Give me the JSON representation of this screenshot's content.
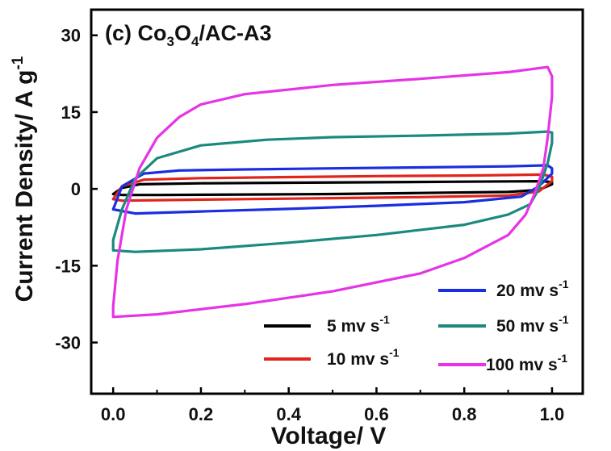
{
  "chart_data": {
    "type": "line",
    "title": "(c) Co3O4/AC-A3",
    "title_parts": {
      "prefix": "(c) Co",
      "sub1": "3",
      "mid": "O",
      "sub2": "4",
      "suffix": "/AC-A3"
    },
    "xlabel": "Voltage/ V",
    "ylabel": "Current Density/ A g",
    "ylabel_superscript": "-1",
    "xlim": [
      -0.05,
      1.07
    ],
    "ylim": [
      -40,
      35
    ],
    "xticks": [
      0.0,
      0.2,
      0.4,
      0.6,
      0.8,
      1.0
    ],
    "xtick_labels": [
      "0.0",
      "0.2",
      "0.4",
      "0.6",
      "0.8",
      "1.0"
    ],
    "yticks": [
      -30,
      -15,
      0,
      15,
      30
    ],
    "ytick_labels": [
      "-30",
      "-15",
      "0",
      "15",
      "30"
    ],
    "grid": false,
    "legend_placement": "bottom-right",
    "series": [
      {
        "name": "5 mv s",
        "unit_sup": "-1",
        "color": "#000000",
        "anodic": [
          [
            0.0,
            -1.0
          ],
          [
            0.02,
            0.2
          ],
          [
            0.06,
            0.9
          ],
          [
            0.2,
            1.1
          ],
          [
            0.4,
            1.2
          ],
          [
            0.6,
            1.3
          ],
          [
            0.8,
            1.4
          ],
          [
            0.98,
            1.5
          ],
          [
            1.0,
            1.3
          ]
        ],
        "cathodic": [
          [
            1.0,
            0.9
          ],
          [
            0.97,
            -0.2
          ],
          [
            0.9,
            -0.6
          ],
          [
            0.7,
            -0.8
          ],
          [
            0.5,
            -1.0
          ],
          [
            0.3,
            -1.1
          ],
          [
            0.1,
            -1.2
          ],
          [
            0.02,
            -1.2
          ],
          [
            0.0,
            -1.0
          ]
        ]
      },
      {
        "name": "10 mv s",
        "unit_sup": "-1",
        "color": "#e0251b",
        "anodic": [
          [
            0.0,
            -2.0
          ],
          [
            0.02,
            0.5
          ],
          [
            0.07,
            1.8
          ],
          [
            0.2,
            2.1
          ],
          [
            0.4,
            2.3
          ],
          [
            0.6,
            2.5
          ],
          [
            0.8,
            2.6
          ],
          [
            0.98,
            2.8
          ],
          [
            1.0,
            2.4
          ]
        ],
        "cathodic": [
          [
            1.0,
            1.5
          ],
          [
            0.97,
            -0.5
          ],
          [
            0.9,
            -1.3
          ],
          [
            0.7,
            -1.6
          ],
          [
            0.5,
            -1.8
          ],
          [
            0.3,
            -2.0
          ],
          [
            0.1,
            -2.2
          ],
          [
            0.02,
            -2.3
          ],
          [
            0.0,
            -2.0
          ]
        ]
      },
      {
        "name": "20 mv s",
        "unit_sup": "-1",
        "color": "#1a2ee0",
        "anodic": [
          [
            0.0,
            -4.0
          ],
          [
            0.02,
            0.5
          ],
          [
            0.07,
            3.0
          ],
          [
            0.15,
            3.6
          ],
          [
            0.3,
            3.8
          ],
          [
            0.5,
            4.0
          ],
          [
            0.7,
            4.2
          ],
          [
            0.9,
            4.4
          ],
          [
            0.99,
            4.6
          ],
          [
            1.0,
            4.0
          ]
        ],
        "cathodic": [
          [
            1.0,
            3.0
          ],
          [
            0.97,
            0.5
          ],
          [
            0.93,
            -1.5
          ],
          [
            0.8,
            -2.6
          ],
          [
            0.6,
            -3.3
          ],
          [
            0.4,
            -3.9
          ],
          [
            0.2,
            -4.4
          ],
          [
            0.05,
            -4.8
          ],
          [
            0.0,
            -4.0
          ]
        ]
      },
      {
        "name": "50 mv s",
        "unit_sup": "-1",
        "color": "#1a8a7e",
        "anodic": [
          [
            0.0,
            -10.0
          ],
          [
            0.02,
            -4.0
          ],
          [
            0.05,
            2.0
          ],
          [
            0.1,
            6.0
          ],
          [
            0.2,
            8.5
          ],
          [
            0.35,
            9.6
          ],
          [
            0.5,
            10.1
          ],
          [
            0.7,
            10.4
          ],
          [
            0.9,
            10.8
          ],
          [
            0.99,
            11.2
          ],
          [
            1.0,
            11.0
          ]
        ],
        "cathodic": [
          [
            1.0,
            9.0
          ],
          [
            0.99,
            5.0
          ],
          [
            0.97,
            0.0
          ],
          [
            0.95,
            -3.0
          ],
          [
            0.9,
            -5.0
          ],
          [
            0.8,
            -7.0
          ],
          [
            0.6,
            -9.0
          ],
          [
            0.4,
            -10.5
          ],
          [
            0.2,
            -11.8
          ],
          [
            0.05,
            -12.3
          ],
          [
            0.0,
            -12.0
          ]
        ]
      },
      {
        "name": "100 mv s",
        "unit_sup": "-1",
        "color": "#e633e6",
        "anodic": [
          [
            0.0,
            -23.0
          ],
          [
            0.01,
            -14.0
          ],
          [
            0.03,
            -4.0
          ],
          [
            0.06,
            4.0
          ],
          [
            0.1,
            10.0
          ],
          [
            0.15,
            14.0
          ],
          [
            0.2,
            16.5
          ],
          [
            0.3,
            18.5
          ],
          [
            0.5,
            20.3
          ],
          [
            0.7,
            21.5
          ],
          [
            0.9,
            22.8
          ],
          [
            0.99,
            23.8
          ],
          [
            1.0,
            22.0
          ]
        ],
        "cathodic": [
          [
            1.0,
            18.0
          ],
          [
            0.99,
            10.0
          ],
          [
            0.98,
            4.0
          ],
          [
            0.96,
            -1.0
          ],
          [
            0.94,
            -5.0
          ],
          [
            0.9,
            -9.0
          ],
          [
            0.8,
            -13.5
          ],
          [
            0.7,
            -16.5
          ],
          [
            0.5,
            -20.0
          ],
          [
            0.3,
            -22.5
          ],
          [
            0.1,
            -24.5
          ],
          [
            0.0,
            -25.0
          ]
        ]
      }
    ]
  }
}
